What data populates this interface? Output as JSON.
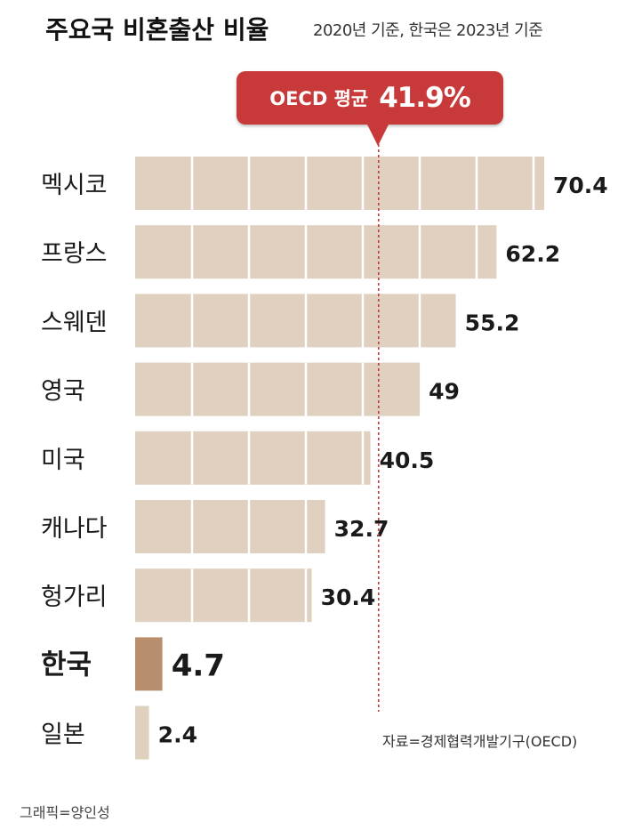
{
  "chart_data": {
    "type": "bar",
    "orientation": "horizontal",
    "title": "주요국 비혼출산 비율",
    "subtitle": "2020년 기준, 한국은 2023년 기준",
    "categories": [
      "멕시코",
      "프랑스",
      "스웨덴",
      "영국",
      "미국",
      "캐나다",
      "헝가리",
      "한국",
      "일본"
    ],
    "values": [
      70.4,
      62.2,
      55.2,
      49,
      40.5,
      32.7,
      30.4,
      4.7,
      2.4
    ],
    "value_labels": [
      "70.4",
      "62.2",
      "55.2",
      "49",
      "40.5",
      "32.7",
      "30.4",
      "4.7",
      "2.4"
    ],
    "highlight_category": "한국",
    "reference_line": {
      "label": "OECD 평균",
      "value": 41.9,
      "value_label": "41.9%"
    },
    "xlim": [
      0,
      70.4
    ],
    "grid": true,
    "colors": {
      "bar": "#dfd0bf",
      "highlight_bar": "#b88e6d",
      "reference": "#c83a3a",
      "grid": "#ffffff"
    }
  },
  "notes": {
    "source": "자료=경제협력개발기구(OECD)",
    "credit": "그래픽=양인성"
  }
}
